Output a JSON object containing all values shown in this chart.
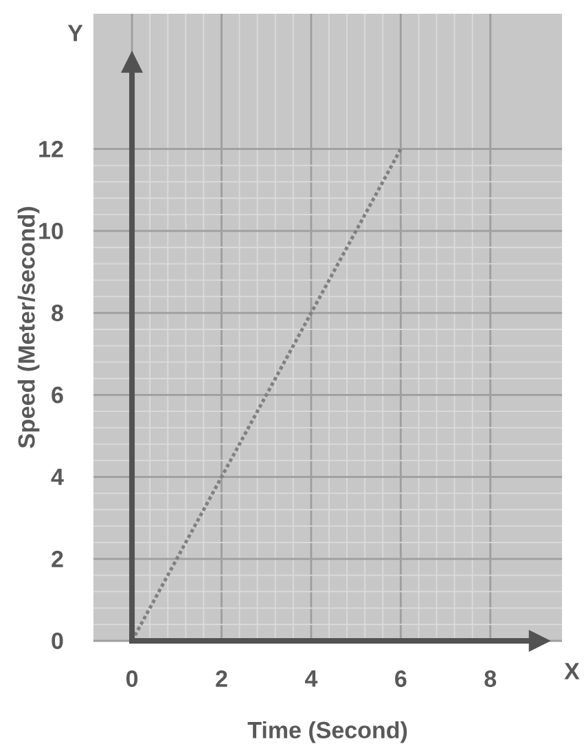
{
  "chart_data": {
    "type": "line",
    "xlabel": "Time (Second)",
    "ylabel": "Speed (Meter/second)",
    "annotations": [
      "X",
      "Y"
    ],
    "x": [
      0,
      6
    ],
    "series": [
      {
        "color": "#808080",
        "values": [
          0,
          12
        ]
      }
    ],
    "xlim": [
      -0.86,
      9.6
    ],
    "ylim": [
      0,
      15.3
    ],
    "xticks": [
      0,
      2,
      4,
      6,
      8
    ],
    "yticks": [
      0,
      2,
      4,
      6,
      8,
      10,
      12
    ],
    "grid": true,
    "marker": "none",
    "line_style": "dotted"
  }
}
